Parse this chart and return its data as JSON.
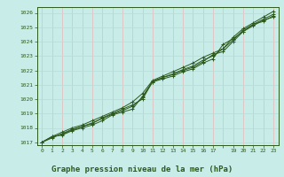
{
  "background_color": "#c8ece8",
  "grid_v_color": "#e8b8b8",
  "grid_h_color": "#b8dcd8",
  "line_color": "#2d5a1b",
  "marker": "+",
  "title": "Graphe pression niveau de la mer (hPa)",
  "title_color": "#2d5a1b",
  "title_fontsize": 6.5,
  "ylim": [
    1016.8,
    1026.4
  ],
  "xlim": [
    -0.5,
    23.5
  ],
  "yticks": [
    1017,
    1018,
    1019,
    1020,
    1021,
    1022,
    1023,
    1024,
    1025,
    1026
  ],
  "xtick_labels": [
    "0",
    "1",
    "2",
    "3",
    "4",
    "5",
    "6",
    "7",
    "8",
    "9",
    "10",
    "11",
    "12",
    "13",
    "14",
    "15",
    "16",
    "17",
    "",
    "19",
    "20",
    "21",
    "22",
    "23"
  ],
  "series": [
    [
      1017.0,
      1017.4,
      1017.5,
      1017.8,
      1018.0,
      1018.2,
      1018.5,
      1018.9,
      1019.1,
      1019.3,
      1020.2,
      1021.2,
      1021.4,
      1021.6,
      1021.9,
      1022.1,
      1022.5,
      1022.8,
      1023.8,
      1024.2,
      1024.7,
      1025.1,
      1025.5,
      1025.7
    ],
    [
      1017.0,
      1017.3,
      1017.6,
      1017.9,
      1018.1,
      1018.3,
      1018.7,
      1019.0,
      1019.3,
      1019.6,
      1020.0,
      1021.2,
      1021.5,
      1021.7,
      1022.0,
      1022.2,
      1022.6,
      1023.1,
      1023.3,
      1024.0,
      1024.7,
      1025.2,
      1025.4,
      1025.8
    ],
    [
      1017.0,
      1017.4,
      1017.7,
      1018.0,
      1018.2,
      1018.5,
      1018.8,
      1019.1,
      1019.4,
      1019.8,
      1020.4,
      1021.3,
      1021.6,
      1021.9,
      1022.2,
      1022.5,
      1022.9,
      1023.2,
      1023.5,
      1024.3,
      1024.9,
      1025.3,
      1025.7,
      1026.1
    ],
    [
      1017.0,
      1017.35,
      1017.55,
      1017.85,
      1018.1,
      1018.35,
      1018.65,
      1018.95,
      1019.2,
      1019.5,
      1020.1,
      1021.25,
      1021.5,
      1021.75,
      1022.05,
      1022.3,
      1022.7,
      1023.0,
      1023.5,
      1024.1,
      1024.8,
      1025.2,
      1025.55,
      1025.9
    ]
  ]
}
